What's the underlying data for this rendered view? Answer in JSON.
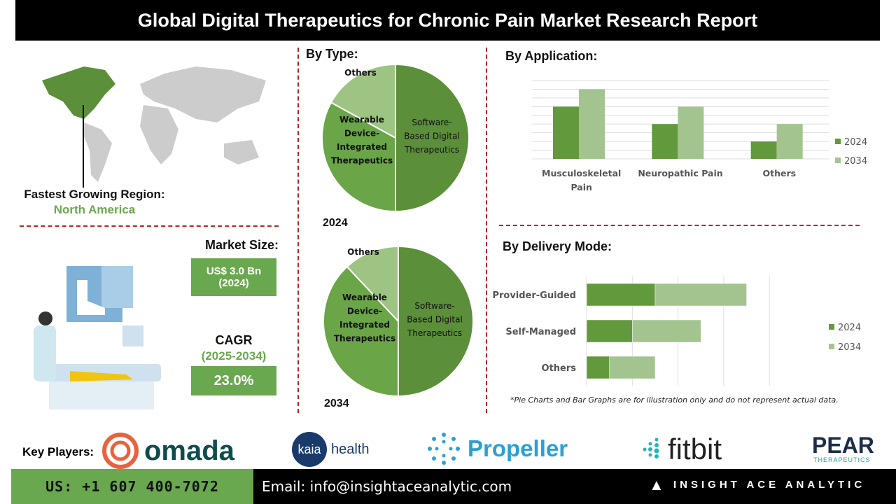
{
  "header": {
    "title": "Global Digital Therapeutics for Chronic Pain Market Research Report"
  },
  "region": {
    "label": "Fastest Growing Region:",
    "value": "North America"
  },
  "market": {
    "size_label": "Market Size:",
    "size_value": "US$ 3.0 Bn",
    "size_year": "(2024)",
    "cagr_label": "CAGR",
    "cagr_period": "(2025-2034)",
    "cagr_value": "23.0%"
  },
  "colors": {
    "dark_green": "#5b8f3a",
    "mid_green": "#6aa547",
    "light_green": "#9dc483",
    "accent_text": "#6aa84f",
    "divider": "#b22222"
  },
  "chart_data": [
    {
      "type": "pie",
      "title": "By Type:",
      "label": "2024",
      "slices": [
        {
          "name": "Software-Based Digital Therapeutics",
          "value": 50
        },
        {
          "name": "Wearable Device-Integrated Therapeutics",
          "value": 33
        },
        {
          "name": "Others",
          "value": 17
        }
      ]
    },
    {
      "type": "pie",
      "label": "2034",
      "slices": [
        {
          "name": "Software-Based Digital Therapeutics",
          "value": 50
        },
        {
          "name": "Wearable Device-Integrated Therapeutics",
          "value": 38
        },
        {
          "name": "Others",
          "value": 12
        }
      ]
    },
    {
      "type": "bar",
      "title": "By Application:",
      "categories": [
        "Musculoskeletal Pain",
        "Neuropathic Pain",
        "Others"
      ],
      "series": [
        {
          "name": "2024",
          "values": [
            6,
            4,
            2
          ]
        },
        {
          "name": "2034",
          "values": [
            8,
            6,
            4
          ]
        }
      ],
      "ylim": [
        0,
        9
      ],
      "grid": true,
      "legend": "right"
    },
    {
      "type": "bar",
      "orientation": "horizontal",
      "stacked": true,
      "title": "By Delivery Mode:",
      "categories": [
        "Provider-Guided",
        "Self-Managed",
        "Others"
      ],
      "series": [
        {
          "name": "2024",
          "values": [
            1.5,
            1,
            0.5
          ]
        },
        {
          "name": "2034",
          "values": [
            2,
            1.5,
            1
          ]
        }
      ],
      "xlim": [
        0,
        4
      ],
      "grid": true,
      "legend": "right"
    }
  ],
  "note": "*Pie Charts and Bar Graphs are for illustration only and do not represent actual data.",
  "key_players": {
    "label": "Key Players:",
    "items": [
      "omada",
      "kaia",
      "health",
      "Propeller",
      "fitbit",
      "PEAR",
      "THERAPEUTICS"
    ]
  },
  "footer": {
    "phone": "US: +1 607 400-7072",
    "email": "Email: info@insightaceanalytic.com",
    "brand": "INSIGHT ACE ANALYTIC"
  }
}
